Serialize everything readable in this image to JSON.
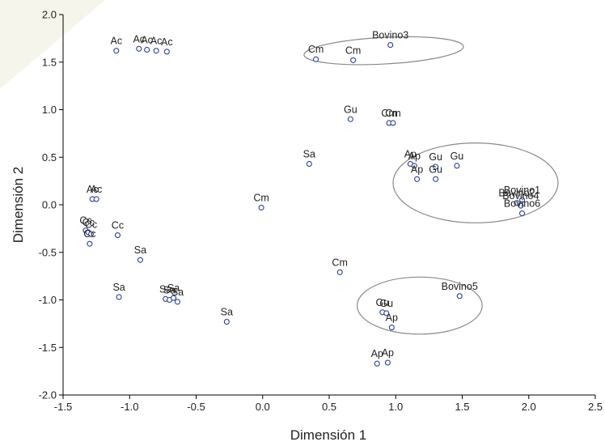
{
  "chart_data": {
    "type": "scatter",
    "xlabel": "Dimensión 1",
    "ylabel": "Dimensión 2",
    "xlim": [
      -1.5,
      2.5
    ],
    "ylim": [
      -2.0,
      2.0
    ],
    "x_ticks": [
      -1.5,
      -1.0,
      -0.5,
      0.0,
      0.5,
      1.0,
      1.5,
      2.0,
      2.5
    ],
    "y_ticks": [
      -2.0,
      -1.5,
      -1.0,
      -0.5,
      0.0,
      0.5,
      1.0,
      1.5,
      2.0
    ],
    "x_tick_labels": [
      "-1.5",
      "-1.0",
      "-0.5",
      "0.0",
      "0.5",
      "1.0",
      "1.5",
      "2.0",
      "2.5"
    ],
    "y_tick_labels": [
      "-2.0",
      "-1.5",
      "-1.0",
      "-0.5",
      "0.0",
      "0.5",
      "1.0",
      "1.5",
      "2.0"
    ],
    "grid": false,
    "points": [
      {
        "label": "Ac",
        "x": -1.1,
        "y": 1.62
      },
      {
        "label": "Ac",
        "x": -0.93,
        "y": 1.64
      },
      {
        "label": "Ac",
        "x": -0.87,
        "y": 1.63
      },
      {
        "label": "Ac",
        "x": -0.8,
        "y": 1.62
      },
      {
        "label": "Ac",
        "x": -0.72,
        "y": 1.61
      },
      {
        "label": "Cm",
        "x": 0.4,
        "y": 1.53
      },
      {
        "label": "Cm",
        "x": 0.68,
        "y": 1.52
      },
      {
        "label": "Bovino3",
        "x": 0.96,
        "y": 1.68
      },
      {
        "label": "Gu",
        "x": 0.66,
        "y": 0.9
      },
      {
        "label": "Cm",
        "x": 0.95,
        "y": 0.86
      },
      {
        "label": "Cm",
        "x": 0.98,
        "y": 0.86
      },
      {
        "label": "Sa",
        "x": 0.35,
        "y": 0.43
      },
      {
        "label": "Ap",
        "x": 1.11,
        "y": 0.43
      },
      {
        "label": "Ap",
        "x": 1.14,
        "y": 0.41
      },
      {
        "label": "Gu",
        "x": 1.46,
        "y": 0.41
      },
      {
        "label": "Gu",
        "x": 1.3,
        "y": 0.4
      },
      {
        "label": "Gu",
        "x": 1.3,
        "y": 0.27
      },
      {
        "label": "Ap",
        "x": 1.16,
        "y": 0.27
      },
      {
        "label": "Bovino1",
        "x": 1.95,
        "y": 0.05
      },
      {
        "label": "Bovino2",
        "x": 1.91,
        "y": 0.02
      },
      {
        "label": "Bovino4",
        "x": 1.94,
        "y": -0.01
      },
      {
        "label": "Bovino6",
        "x": 1.95,
        "y": -0.09
      },
      {
        "label": "Ac",
        "x": -1.28,
        "y": 0.06
      },
      {
        "label": "Ac",
        "x": -1.25,
        "y": 0.06
      },
      {
        "label": "Cm",
        "x": -0.01,
        "y": -0.03
      },
      {
        "label": "Cc",
        "x": -1.33,
        "y": -0.27
      },
      {
        "label": "Cc",
        "x": -1.31,
        "y": -0.29
      },
      {
        "label": "Cc",
        "x": -1.29,
        "y": -0.31
      },
      {
        "label": "Cc",
        "x": -1.3,
        "y": -0.41
      },
      {
        "label": "Cc",
        "x": -1.09,
        "y": -0.32
      },
      {
        "label": "Sa",
        "x": -0.92,
        "y": -0.58
      },
      {
        "label": "Cm",
        "x": 0.58,
        "y": -0.71
      },
      {
        "label": "Sa",
        "x": -1.08,
        "y": -0.97
      },
      {
        "label": "Sa",
        "x": -0.73,
        "y": -0.99
      },
      {
        "label": "Sa",
        "x": -0.7,
        "y": -1.0
      },
      {
        "label": "Sa",
        "x": -0.67,
        "y": -0.98
      },
      {
        "label": "Sa",
        "x": -0.64,
        "y": -1.02
      },
      {
        "label": "Sa",
        "x": -0.27,
        "y": -1.23
      },
      {
        "label": "Bovino5",
        "x": 1.48,
        "y": -0.96
      },
      {
        "label": "Gu",
        "x": 0.9,
        "y": -1.13
      },
      {
        "label": "Gu",
        "x": 0.93,
        "y": -1.14
      },
      {
        "label": "Ap",
        "x": 0.97,
        "y": -1.29
      },
      {
        "label": "Ap",
        "x": 0.86,
        "y": -1.67
      },
      {
        "label": "Ap",
        "x": 0.94,
        "y": -1.66
      }
    ],
    "ellipses": [
      {
        "cx": 0.91,
        "cy": 1.62,
        "rx": 0.6,
        "ry": 0.14,
        "angle": -3
      },
      {
        "cx": 1.6,
        "cy": 0.23,
        "rx": 0.62,
        "ry": 0.42,
        "angle": 0
      },
      {
        "cx": 1.18,
        "cy": -1.06,
        "rx": 0.47,
        "ry": 0.3,
        "angle": 0
      }
    ]
  }
}
